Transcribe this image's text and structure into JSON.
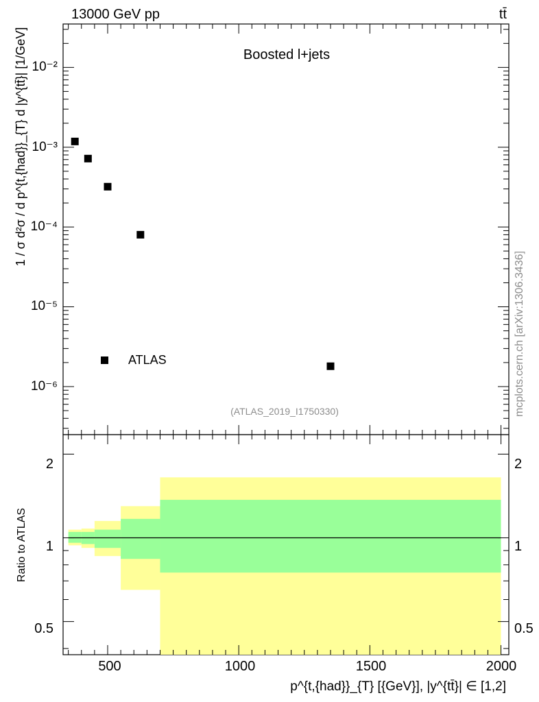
{
  "header": {
    "left": "13000 GeV pp",
    "right": "tt̄"
  },
  "top_panel": {
    "label": "Boosted l+jets",
    "legend_entry": "ATLAS",
    "analysis_id": "(ATLAS_2019_I1750330)",
    "side_credit": "mcplots.cern.ch [arXiv:1306.3436]",
    "ylabel": "1 / σ d²σ / d p^{t,{had}}_{T} d |y^{tt̄}| [1/GeV]",
    "y_tick_labels": [
      "10⁻²",
      "10⁻³",
      "10⁻⁴",
      "10⁻⁵",
      "10⁻⁶"
    ]
  },
  "bottom_panel": {
    "ylabel": "Ratio to ATLAS",
    "y_tick_labels": [
      "2",
      "1",
      "0.5"
    ],
    "x_tick_labels": [
      "500",
      "1000",
      "1500",
      "2000"
    ],
    "xlabel": "p^{t,{had}}_{T} [{GeV}], |y^{tt̄}| ∈ [1,2]"
  },
  "colors": {
    "band_outer": "#ffff99",
    "band_inner": "#99ff99",
    "marker": "#000000"
  },
  "chart_data": [
    {
      "type": "scatter",
      "xlim": [
        330,
        2030
      ],
      "ylim": [
        2.5e-07,
        0.035
      ],
      "yscale": "log",
      "series": [
        {
          "name": "ATLAS",
          "x": [
            375,
            425,
            500,
            625,
            1350
          ],
          "y": [
            0.00118,
            0.00072,
            0.00032,
            8e-05,
            1.8e-06
          ]
        }
      ]
    },
    {
      "type": "area",
      "xlim": [
        330,
        2030
      ],
      "ylim": [
        0.38,
        2.35
      ],
      "yscale": "log",
      "bins": [
        {
          "xlo": 350,
          "xhi": 400,
          "outer": [
            0.94,
            1.07
          ],
          "inner": [
            0.96,
            1.05
          ]
        },
        {
          "xlo": 400,
          "xhi": 450,
          "outer": [
            0.92,
            1.08
          ],
          "inner": [
            0.95,
            1.05
          ]
        },
        {
          "xlo": 450,
          "xhi": 550,
          "outer": [
            0.86,
            1.15
          ],
          "inner": [
            0.92,
            1.07
          ]
        },
        {
          "xlo": 550,
          "xhi": 700,
          "outer": [
            0.65,
            1.3
          ],
          "inner": [
            0.84,
            1.17
          ]
        },
        {
          "xlo": 700,
          "xhi": 2000,
          "outer": [
            0.38,
            1.65
          ],
          "inner": [
            0.75,
            1.37
          ]
        }
      ],
      "reference_line": 1.0
    }
  ]
}
